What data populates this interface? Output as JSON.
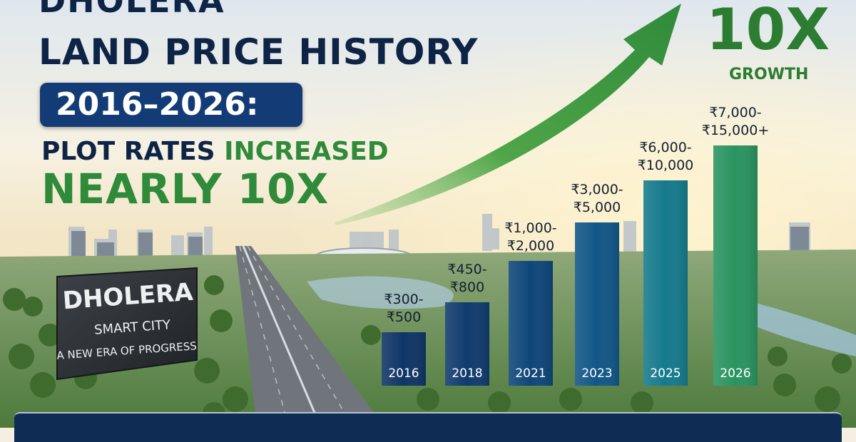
{
  "title": {
    "top_word": "DHOLERA",
    "main": "LAND PRICE HISTORY",
    "year_range": "2016–2026:",
    "subtitle_plot": "PLOT RATES",
    "subtitle_increased": "INCREASED",
    "subtitle_big": "NEARLY 10X"
  },
  "growth": {
    "big": "10X",
    "word": "GROWTH"
  },
  "sign": {
    "title": "DHOLERA",
    "line1": "SMART CITY",
    "line2": "A NEW ERA OF PROGRESS"
  },
  "colors": {
    "navy": "#0e2447",
    "badge": "#133c76",
    "green": "#2f8a3a",
    "arrow": "#3a9a40"
  },
  "chart_data": {
    "type": "bar",
    "categories": [
      "2016",
      "2018",
      "2021",
      "2023",
      "2025",
      "2026"
    ],
    "labels": [
      [
        "₹300-",
        "₹500"
      ],
      [
        "₹450-",
        "₹800"
      ],
      [
        "₹1,000-",
        "₹2,000"
      ],
      [
        "₹3,000-",
        "₹5,000"
      ],
      [
        "₹6,000-",
        "₹10,000"
      ],
      [
        "₹7,000-",
        "₹15,000+"
      ]
    ],
    "low": [
      300,
      450,
      1000,
      3000,
      6000,
      7000
    ],
    "high": [
      500,
      800,
      2000,
      5000,
      10000,
      15000
    ],
    "bar_colors": [
      "#0f3566",
      "#103b6e",
      "#0f4679",
      "#125687",
      "#157a8c",
      "#2a9360"
    ],
    "trend": "upward arrow"
  }
}
